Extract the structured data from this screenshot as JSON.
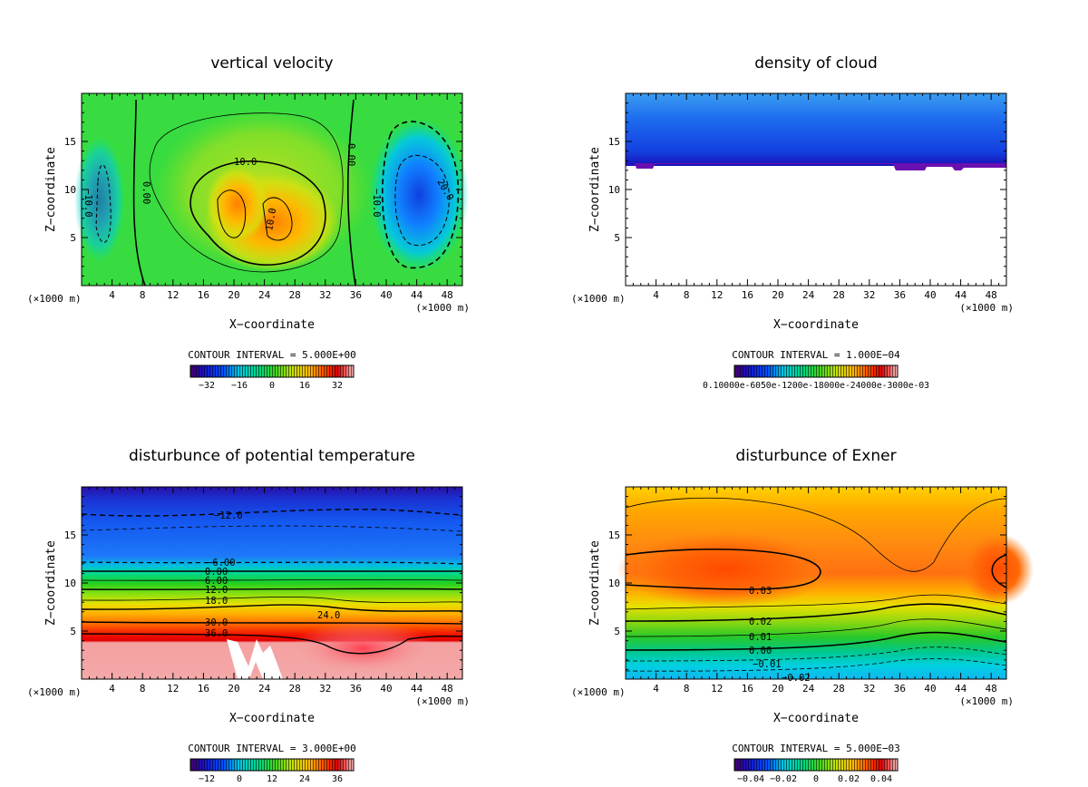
{
  "colors": {
    "rainbow": [
      "#4a006a",
      "#1a10c8",
      "#0050ff",
      "#0098ff",
      "#00d0e8",
      "#00e0a0",
      "#28d828",
      "#90e020",
      "#d8e010",
      "#ffd000",
      "#ff9000",
      "#ff4800",
      "#e00000",
      "#ff9090",
      "#ffc8c8"
    ]
  },
  "chart_data": [
    {
      "type": "heatmap",
      "title": "vertical velocity",
      "xlabel": "X−coordinate",
      "ylabel": "Z−coordinate",
      "x_unit": "(×1000 m)",
      "xlim": [
        0,
        50
      ],
      "ylim": [
        0,
        20
      ],
      "xticks": [
        "4",
        "8",
        "12",
        "16",
        "20",
        "24",
        "28",
        "32",
        "36",
        "40",
        "44",
        "48"
      ],
      "yticks": [
        "5",
        "10",
        "15"
      ],
      "contour_interval": "CONTOUR INTERVAL = 5.000E+00",
      "colorbar_ticks": [
        "−32",
        "−16",
        "0",
        "16",
        "32"
      ],
      "contour_labels": [
        "10.0",
        "0.00",
        "0.00",
        "10.0",
        "10.0",
        "20.0",
        "−10.0",
        "−10.0"
      ]
    },
    {
      "type": "heatmap",
      "title": "density of cloud",
      "xlabel": "X−coordinate",
      "ylabel": "Z−coordinate",
      "x_unit": "(×1000 m)",
      "xlim": [
        0,
        50
      ],
      "ylim": [
        0,
        20
      ],
      "xticks": [
        "4",
        "8",
        "12",
        "16",
        "20",
        "24",
        "28",
        "32",
        "36",
        "40",
        "44",
        "48"
      ],
      "yticks": [
        "5",
        "10",
        "15"
      ],
      "contour_interval": "CONTOUR INTERVAL = 1.000E−04",
      "colorbar_ticks": [
        "0.10000e-6050e-1200e-18000e-24000e-3000e-03"
      ],
      "contour_labels": []
    },
    {
      "type": "heatmap",
      "title": "disturbunce of potential temperature",
      "xlabel": "X−coordinate",
      "ylabel": "Z−coordinate",
      "x_unit": "(×1000 m)",
      "xlim": [
        0,
        50
      ],
      "ylim": [
        0,
        20
      ],
      "xticks": [
        "4",
        "8",
        "12",
        "16",
        "20",
        "24",
        "28",
        "32",
        "36",
        "40",
        "44",
        "48"
      ],
      "yticks": [
        "5",
        "10",
        "15"
      ],
      "contour_interval": "CONTOUR INTERVAL = 3.000E+00",
      "colorbar_ticks": [
        "−12",
        "0",
        "12",
        "24",
        "36"
      ],
      "contour_labels": [
        "−12.0",
        "−6.00",
        "0.00",
        "6.00",
        "12.0",
        "18.0",
        "24.0",
        "30.0",
        "36.0"
      ]
    },
    {
      "type": "heatmap",
      "title": "disturbunce of Exner",
      "xlabel": "X−coordinate",
      "ylabel": "Z−coordinate",
      "x_unit": "(×1000 m)",
      "xlim": [
        0,
        50
      ],
      "ylim": [
        0,
        20
      ],
      "xticks": [
        "4",
        "8",
        "12",
        "16",
        "20",
        "24",
        "28",
        "32",
        "36",
        "40",
        "44",
        "48"
      ],
      "yticks": [
        "5",
        "10",
        "15"
      ],
      "contour_interval": "CONTOUR INTERVAL = 5.000E−03",
      "colorbar_ticks": [
        "−0.04",
        "−0.02",
        "0",
        "0.02",
        "0.04"
      ],
      "contour_labels": [
        "0.03",
        "0.02",
        "0.01",
        "0.00",
        "−0.01",
        "−0.02"
      ]
    }
  ]
}
